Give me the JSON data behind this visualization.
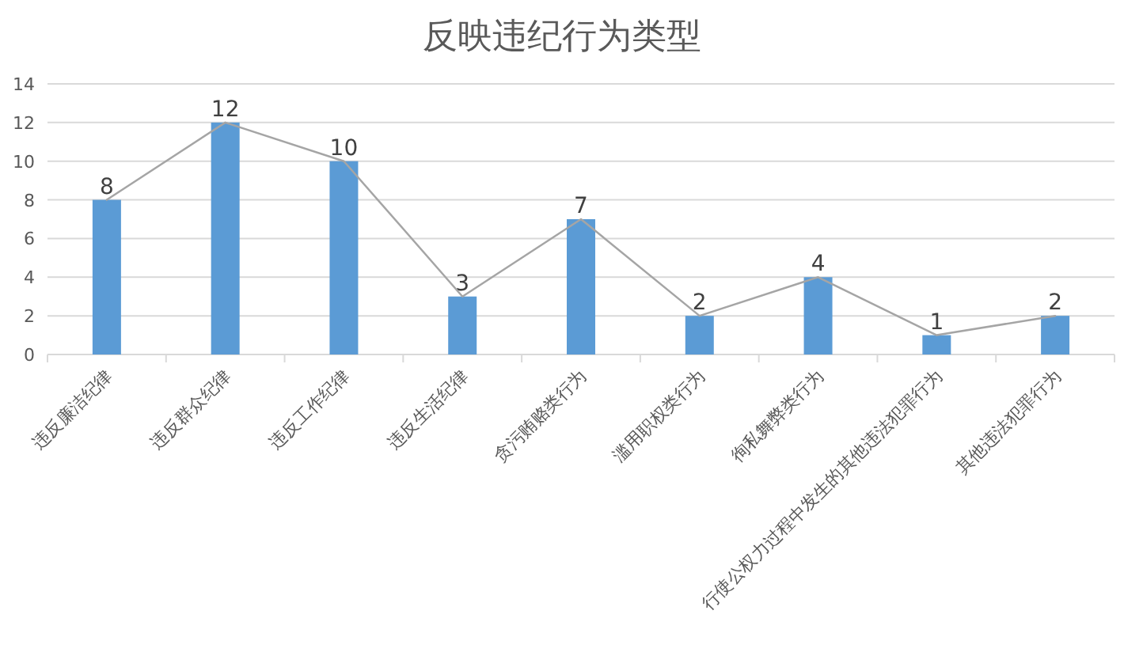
{
  "chart_data": {
    "type": "bar",
    "title": "反映违纪行为类型",
    "categories": [
      "违反廉洁纪律",
      "违反群众纪律",
      "违反工作纪律",
      "违反生活纪律",
      "贪污贿赂类行为",
      "滥用职权类行为",
      "徇私舞弊类行为",
      "行使公权力过程中发生的其他违法犯罪行为",
      "其他违法犯罪行为"
    ],
    "series": [
      {
        "color": "#5b9bd5",
        "values": [
          8,
          12,
          10,
          3,
          7,
          2,
          4,
          1,
          2
        ],
        "value_labels": [
          "8",
          "12",
          "10",
          "3",
          "7",
          "2",
          "4",
          "1",
          "2"
        ]
      },
      {
        "type": "line",
        "color": "#a5a5a5",
        "values": [
          8,
          12,
          10,
          3,
          7,
          2,
          4,
          1,
          2
        ]
      }
    ],
    "ylim": [
      0,
      14
    ],
    "yticks": [
      0,
      2,
      4,
      6,
      8,
      10,
      12,
      14
    ],
    "grid": "y",
    "marker": "none"
  }
}
